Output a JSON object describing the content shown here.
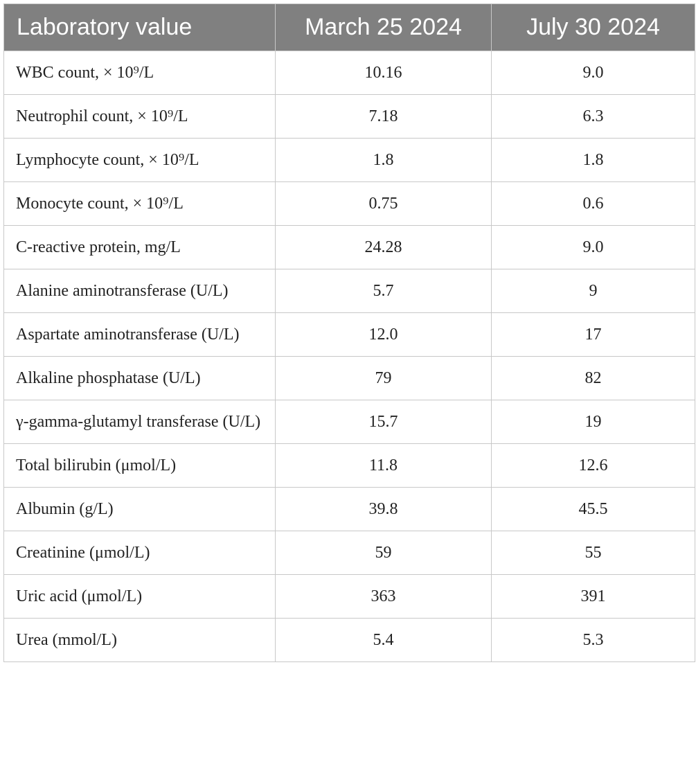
{
  "table": {
    "header": [
      "Laboratory value",
      "March 25 2024",
      "July 30 2024"
    ],
    "rows": [
      [
        "WBC count, × 10⁹/L",
        "10.16",
        "9.0"
      ],
      [
        "Neutrophil count, × 10⁹/L",
        "7.18",
        "6.3"
      ],
      [
        "Lymphocyte count, × 10⁹/L",
        "1.8",
        "1.8"
      ],
      [
        "Monocyte count, × 10⁹/L",
        "0.75",
        "0.6"
      ],
      [
        "C-reactive protein, mg/L",
        "24.28",
        "9.0"
      ],
      [
        "Alanine aminotransferase (U/L)",
        "5.7",
        "9"
      ],
      [
        "Aspartate aminotransferase (U/L)",
        "12.0",
        "17"
      ],
      [
        "Alkaline phosphatase (U/L)",
        "79",
        "82"
      ],
      [
        "γ-gamma-glutamyl transferase (U/L)",
        "15.7",
        "19"
      ],
      [
        "Total bilirubin (μmol/L)",
        "11.8",
        "12.6"
      ],
      [
        "Albumin (g/L)",
        "39.8",
        "45.5"
      ],
      [
        "Creatinine (μmol/L)",
        "59",
        "55"
      ],
      [
        "Uric acid (μmol/L)",
        "363",
        "391"
      ],
      [
        "Urea (mmol/L)",
        "5.4",
        "5.3"
      ]
    ]
  }
}
